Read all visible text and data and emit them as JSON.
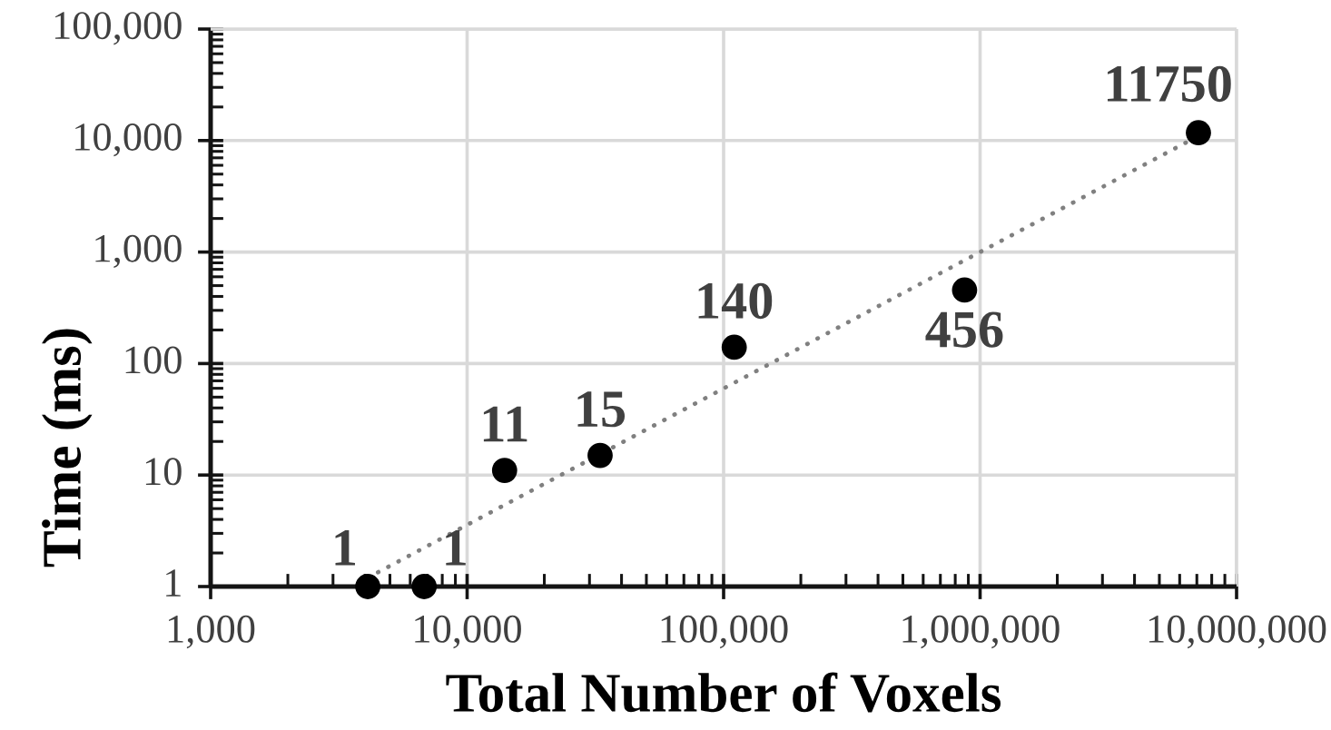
{
  "chart_data": {
    "type": "scatter",
    "xlabel": "Total Number of Voxels",
    "ylabel": "Time (ms)",
    "log": "xy",
    "grid": true,
    "xlim": [
      1000,
      10000000
    ],
    "xticks": [
      {
        "value": 1000,
        "label": "1,000"
      },
      {
        "value": 10000,
        "label": "10,000"
      },
      {
        "value": 100000,
        "label": "100,000"
      },
      {
        "value": 1000000,
        "label": "1,000,000"
      },
      {
        "value": 10000000,
        "label": "10,000,000"
      }
    ],
    "ylim": [
      1,
      100000
    ],
    "yticks": [
      1,
      10,
      100,
      {
        "value": 1000,
        "label": "1,000"
      },
      {
        "value": 10000,
        "label": "10,000"
      },
      {
        "value": 100000,
        "label": "100,000"
      }
    ],
    "series": [
      {
        "color": "#000000",
        "marker": "circle",
        "x": [
          4100,
          6800,
          14000,
          33000,
          110000,
          870000,
          7100000
        ],
        "values": [
          1,
          1,
          11,
          15,
          140,
          456,
          11750
        ],
        "value_labels": [
          "1",
          "1",
          "11",
          "15",
          "140",
          "456",
          "11750"
        ]
      },
      {
        "type": "line",
        "color": "#808080",
        "line_style": "dotted",
        "marker": "none",
        "x": [
          4100,
          7100000
        ],
        "values": [
          1.2,
          11000
        ]
      }
    ]
  }
}
